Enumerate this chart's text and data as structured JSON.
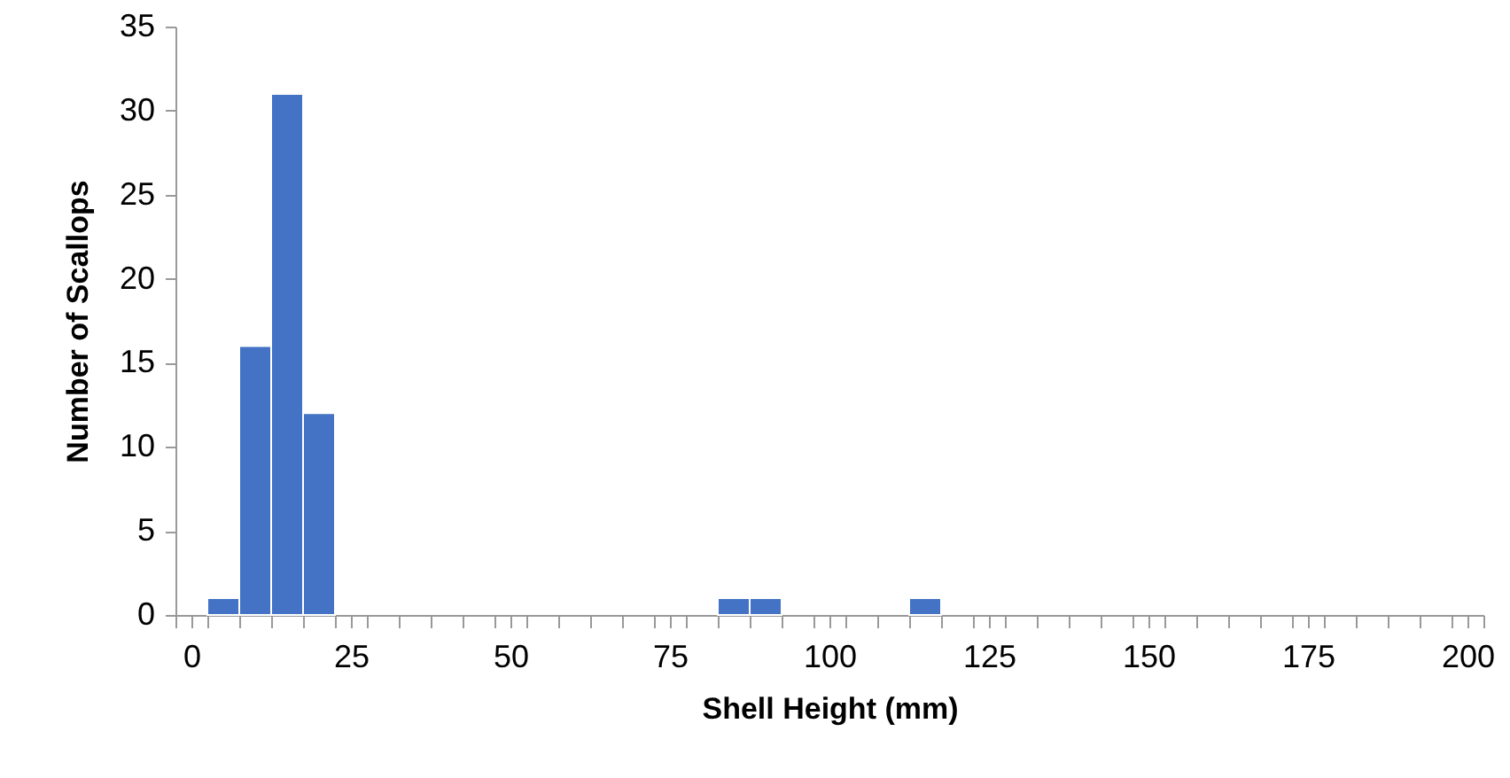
{
  "chart_data": {
    "type": "histogram",
    "xlabel": "Shell Height (mm)",
    "ylabel": "Number of Scallops",
    "color": "#4472c4",
    "bins": [
      -2.5,
      2.5,
      7.5,
      12.5,
      17.5,
      22.5,
      27.5,
      32.5,
      37.5,
      42.5,
      47.5,
      52.5,
      57.5,
      62.5,
      67.5,
      72.5,
      77.5,
      82.5,
      87.5,
      92.5,
      97.5,
      102.5,
      107.5,
      112.5,
      117.5,
      122.5,
      127.5,
      132.5,
      137.5,
      142.5,
      147.5,
      152.5,
      157.5,
      162.5,
      167.5,
      172.5,
      177.5,
      182.5,
      187.5,
      192.5,
      197.5,
      202.5
    ],
    "values": [
      0,
      1,
      16,
      31,
      12,
      0,
      0,
      0,
      0,
      0,
      0,
      0,
      0,
      0,
      0,
      0,
      0,
      1,
      1,
      0,
      0,
      0,
      0,
      1,
      0,
      0,
      0,
      0,
      0,
      0,
      0,
      0,
      0,
      0,
      0,
      0,
      0,
      0,
      0,
      0,
      0
    ],
    "xlim": [
      -2.5,
      202.5
    ],
    "xticks": [
      0,
      25,
      50,
      75,
      100,
      125,
      150,
      175,
      200,
      {
        "value": -2.5,
        "label": null
      },
      {
        "value": 2.5,
        "label": null
      },
      {
        "value": 7.5,
        "label": null
      },
      {
        "value": 12.5,
        "label": null
      },
      {
        "value": 17.5,
        "label": null
      },
      {
        "value": 22.5,
        "label": null
      },
      {
        "value": 27.5,
        "label": null
      },
      {
        "value": 32.5,
        "label": null
      },
      {
        "value": 37.5,
        "label": null
      },
      {
        "value": 42.5,
        "label": null
      },
      {
        "value": 47.5,
        "label": null
      },
      {
        "value": 52.5,
        "label": null
      },
      {
        "value": 57.5,
        "label": null
      },
      {
        "value": 62.5,
        "label": null
      },
      {
        "value": 67.5,
        "label": null
      },
      {
        "value": 72.5,
        "label": null
      },
      {
        "value": 77.5,
        "label": null
      },
      {
        "value": 82.5,
        "label": null
      },
      {
        "value": 87.5,
        "label": null
      },
      {
        "value": 92.5,
        "label": null
      },
      {
        "value": 97.5,
        "label": null
      },
      {
        "value": 102.5,
        "label": null
      },
      {
        "value": 107.5,
        "label": null
      },
      {
        "value": 112.5,
        "label": null
      },
      {
        "value": 117.5,
        "label": null
      },
      {
        "value": 122.5,
        "label": null
      },
      {
        "value": 127.5,
        "label": null
      },
      {
        "value": 132.5,
        "label": null
      },
      {
        "value": 137.5,
        "label": null
      },
      {
        "value": 142.5,
        "label": null
      },
      {
        "value": 147.5,
        "label": null
      },
      {
        "value": 152.5,
        "label": null
      },
      {
        "value": 157.5,
        "label": null
      },
      {
        "value": 162.5,
        "label": null
      },
      {
        "value": 167.5,
        "label": null
      },
      {
        "value": 172.5,
        "label": null
      },
      {
        "value": 177.5,
        "label": null
      },
      {
        "value": 182.5,
        "label": null
      },
      {
        "value": 187.5,
        "label": null
      },
      {
        "value": 192.5,
        "label": null
      },
      {
        "value": 197.5,
        "label": null
      },
      {
        "value": 202.5,
        "label": null
      }
    ],
    "ylim": [
      0,
      35
    ],
    "yticks": [
      0,
      5,
      10,
      15,
      20,
      25,
      30,
      35
    ],
    "grid": false
  }
}
